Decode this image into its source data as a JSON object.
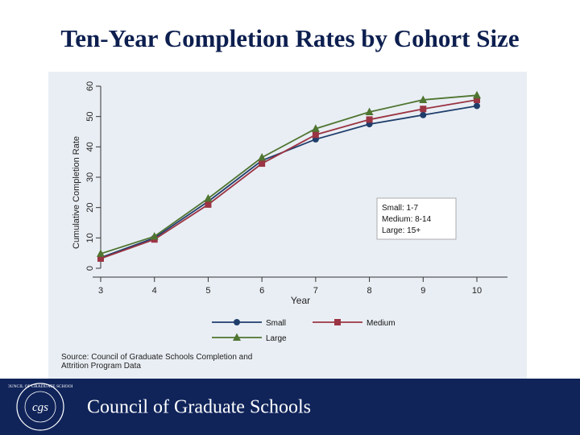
{
  "slide": {
    "title": "Ten-Year Completion Rates by Cohort Size",
    "source_note": "Source: Council of Graduate Schools Completion and Attrition Program Data",
    "footer_org": "Council of Graduate Schools",
    "logo_text": "CGS",
    "logo_ring_text": "COUNCIL OF GRADUATE SCHOOLS"
  },
  "colors": {
    "title": "#0d1f4f",
    "panel": "#e9eef4",
    "footer": "#10245a"
  },
  "chart_data": {
    "type": "line",
    "x": [
      3,
      4,
      5,
      6,
      7,
      8,
      9,
      10
    ],
    "series": [
      {
        "name": "Small",
        "values": [
          3.5,
          10,
          22,
          35.5,
          42.5,
          47.5,
          50.5,
          53.5
        ],
        "color": "#1f3d6b",
        "marker": "circle"
      },
      {
        "name": "Medium",
        "values": [
          3.2,
          9.5,
          21,
          34.5,
          44,
          49,
          52.5,
          55.5
        ],
        "color": "#9b3443",
        "marker": "square"
      },
      {
        "name": "Large",
        "values": [
          4.8,
          10.5,
          23,
          36.5,
          46,
          51.5,
          55.5,
          57
        ],
        "color": "#4f7531",
        "marker": "triangle"
      }
    ],
    "xlabel": "Year",
    "ylabel": "Cumulative Completion Rate",
    "xticks": [
      "3",
      "4",
      "5",
      "6",
      "7",
      "8",
      "9",
      "10"
    ],
    "yticks": [
      "0",
      "10",
      "20",
      "30",
      "40",
      "50",
      "60"
    ],
    "xlim": [
      3,
      10
    ],
    "ylim": [
      0,
      60
    ],
    "legend_placement": "bottom",
    "annotation": [
      "Small: 1-7",
      "Medium: 8-14",
      "Large: 15+"
    ],
    "grid": false
  }
}
